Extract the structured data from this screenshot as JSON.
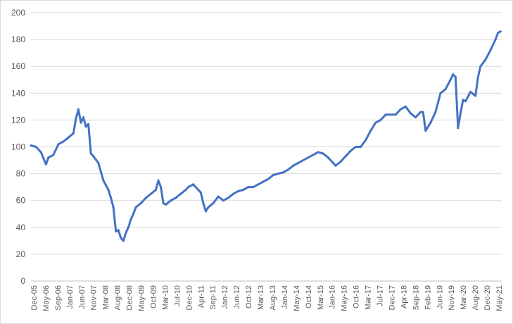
{
  "chart_data": {
    "type": "line",
    "title": "",
    "xlabel": "",
    "ylabel": "",
    "ylim": [
      0,
      200
    ],
    "yticks": [
      0,
      20,
      40,
      60,
      80,
      100,
      120,
      140,
      160,
      180,
      200
    ],
    "grid": "horizontal",
    "legend": "none",
    "x_tick_labels": [
      "Dec-05",
      "May-06",
      "Sep-06",
      "Jan-07",
      "Jun-07",
      "Nov-07",
      "Mar-08",
      "Aug-08",
      "Dec-08",
      "May-09",
      "Oct-09",
      "Mar-10",
      "Jul-10",
      "Dec-10",
      "Apr-11",
      "Sep-11",
      "Jan-12",
      "Jun-12",
      "Oct-12",
      "Mar-13",
      "Aug-13",
      "Jan-14",
      "May-14",
      "Oct-14",
      "Mar-15",
      "Jan-16",
      "May-16",
      "Oct-16",
      "Mar-17",
      "Jul-17",
      "Dec-17",
      "Apr-18",
      "Sep-18",
      "Feb-19",
      "Jun-19",
      "Nov-19",
      "Mar-20",
      "Aug-20",
      "Dec-20",
      "May-21"
    ],
    "series": [
      {
        "color": "#4472c4",
        "x": [
          "2005-12",
          "2006-02",
          "2006-04",
          "2006-06",
          "2006-07",
          "2006-09",
          "2006-11",
          "2007-01",
          "2007-03",
          "2007-05",
          "2007-06",
          "2007-07",
          "2007-08",
          "2007-09",
          "2007-10",
          "2007-11",
          "2007-12",
          "2008-01",
          "2008-03",
          "2008-05",
          "2008-07",
          "2008-08",
          "2008-09",
          "2008-10",
          "2008-11",
          "2008-12",
          "2009-01",
          "2009-02",
          "2009-03",
          "2009-04",
          "2009-05",
          "2009-06",
          "2009-08",
          "2009-10",
          "2009-12",
          "2010-02",
          "2010-03",
          "2010-04",
          "2010-05",
          "2010-06",
          "2010-08",
          "2010-10",
          "2010-12",
          "2011-02",
          "2011-03",
          "2011-05",
          "2011-07",
          "2011-08",
          "2011-09",
          "2011-10",
          "2011-11",
          "2012-01",
          "2012-03",
          "2012-05",
          "2012-07",
          "2012-09",
          "2012-11",
          "2013-01",
          "2013-03",
          "2013-05",
          "2013-07",
          "2013-09",
          "2013-11",
          "2014-01",
          "2014-03",
          "2014-05",
          "2014-07",
          "2014-09",
          "2014-11",
          "2015-01",
          "2015-03",
          "2015-05",
          "2015-07",
          "2015-09",
          "2015-11",
          "2016-01",
          "2016-02",
          "2016-04",
          "2016-06",
          "2016-08",
          "2016-10",
          "2016-12",
          "2017-02",
          "2017-04",
          "2017-06",
          "2017-08",
          "2017-10",
          "2017-12",
          "2018-02",
          "2018-04",
          "2018-06",
          "2018-08",
          "2018-10",
          "2018-12",
          "2019-01",
          "2019-02",
          "2019-04",
          "2019-06",
          "2019-08",
          "2019-10",
          "2019-12",
          "2020-01",
          "2020-02",
          "2020-03",
          "2020-04",
          "2020-05",
          "2020-06",
          "2020-08",
          "2020-10",
          "2020-11",
          "2020-12",
          "2021-02",
          "2021-04",
          "2021-06",
          "2021-07",
          "2021-08"
        ],
        "values": [
          101,
          100,
          96,
          87,
          92,
          94,
          102,
          104,
          107,
          110,
          121,
          128,
          118,
          122,
          115,
          117,
          95,
          93,
          88,
          75,
          68,
          62,
          55,
          37,
          38,
          32,
          30,
          36,
          40,
          46,
          50,
          55,
          58,
          62,
          65,
          68,
          75,
          70,
          58,
          57,
          60,
          62,
          65,
          68,
          70,
          72,
          68,
          66,
          58,
          52,
          55,
          58,
          63,
          60,
          62,
          65,
          67,
          68,
          70,
          70,
          72,
          74,
          76,
          79,
          80,
          81,
          83,
          86,
          88,
          90,
          92,
          94,
          96,
          95,
          92,
          88,
          86,
          89,
          93,
          97,
          100,
          100,
          105,
          112,
          118,
          120,
          124,
          124,
          124,
          128,
          130,
          125,
          122,
          126,
          126,
          112,
          118,
          126,
          140,
          143,
          150,
          154,
          152,
          114,
          125,
          135,
          134,
          141,
          138,
          152,
          160,
          165,
          172,
          180,
          185,
          186
        ]
      }
    ]
  }
}
